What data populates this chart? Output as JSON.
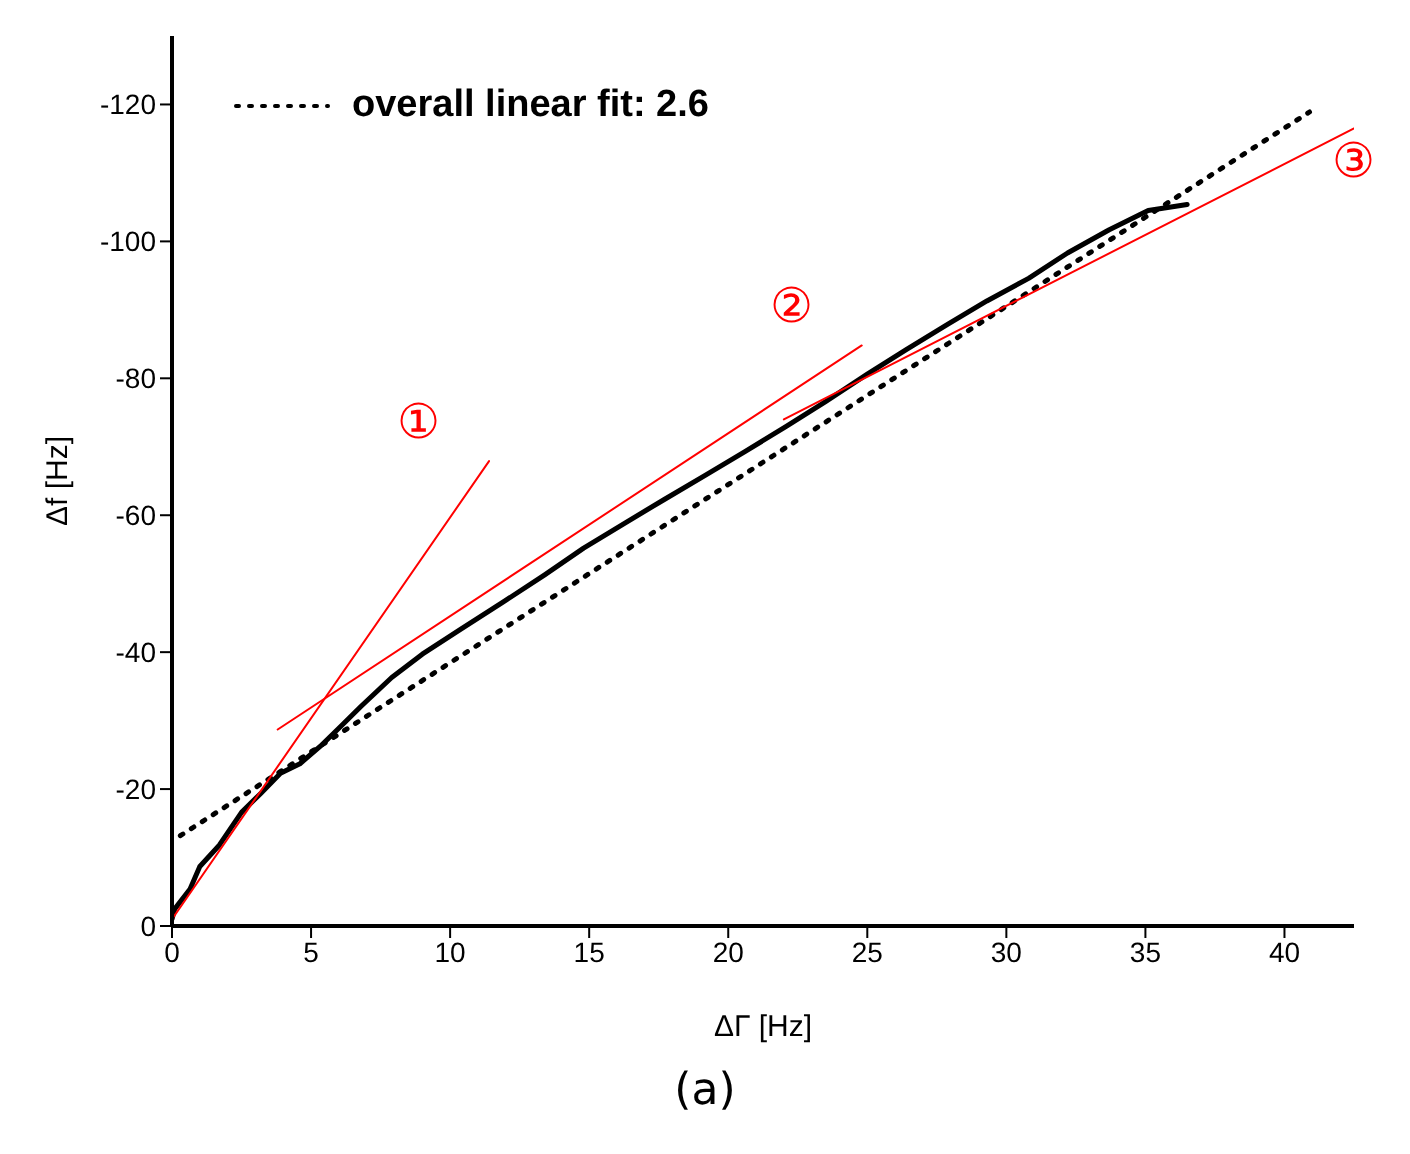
{
  "chart_data": {
    "type": "line",
    "xlabel": "ΔΓ [Hz]",
    "ylabel": "Δf [Hz]",
    "xlim": [
      0,
      42.5
    ],
    "xticks": [
      0,
      5,
      10,
      15,
      20,
      25,
      30,
      35,
      40
    ],
    "ylim": [
      0,
      -130
    ],
    "yticks": [
      0,
      -20,
      -40,
      -60,
      -80,
      -100,
      -120
    ],
    "grid": false,
    "legend": "top left",
    "marker": "none",
    "series": [
      {
        "color": "#000000",
        "line_style": "solid",
        "x": [
          0,
          0.1,
          0.65,
          1.0,
          1.7,
          2.5,
          3.2,
          3.9,
          4.6,
          5.4,
          6.1,
          6.8,
          7.9,
          9.0,
          10.4,
          11.9,
          13.4,
          14.8,
          16.3,
          17.7,
          19.2,
          20.6,
          22.1,
          23.5,
          25.0,
          26.4,
          27.9,
          29.3,
          30.8,
          32.2,
          33.7,
          35.1,
          36.5
        ],
        "values": [
          -1,
          -2.5,
          -5.4,
          -8.7,
          -11.8,
          -16.6,
          -19.4,
          -22.3,
          -23.7,
          -26.5,
          -29.3,
          -32.1,
          -36.3,
          -39.7,
          -43.4,
          -47.3,
          -51.3,
          -55.2,
          -58.9,
          -62.3,
          -65.9,
          -69.3,
          -73.0,
          -76.6,
          -80.6,
          -84.2,
          -87.9,
          -91.3,
          -94.6,
          -98.3,
          -101.7,
          -104.5,
          -105.4
        ]
      },
      {
        "name": "overall linear fit: 2.6",
        "color": "#000000",
        "line_style": "dotted",
        "x": [
          0.3,
          40.9
        ],
        "values": [
          -13.2,
          -118.9
        ]
      },
      {
        "color": "#ff0000",
        "line_style": "solid",
        "x": [
          0,
          11.4
        ],
        "values": [
          -1,
          -67.9
        ]
      },
      {
        "color": "#ff0000",
        "line_style": "solid",
        "x": [
          3.8,
          24.8
        ],
        "values": [
          -28.7,
          -84.8
        ]
      },
      {
        "color": "#ff0000",
        "line_style": "solid",
        "x": [
          22,
          42.5
        ],
        "values": [
          -74,
          -116.5
        ]
      }
    ],
    "annotations": [
      "①",
      "②",
      "③",
      "(a)"
    ]
  }
}
